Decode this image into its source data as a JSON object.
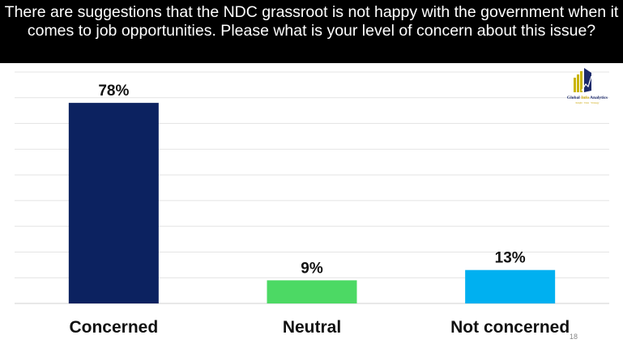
{
  "chart_data": {
    "type": "bar",
    "title": "There are suggestions that the NDC grassroot is not happy with the government when it comes to job opportunities. Please what is your level of concern about this issue?",
    "categories": [
      "Concerned",
      "Neutral",
      "Not concerned"
    ],
    "values": [
      78,
      9,
      13
    ],
    "data_labels": [
      "78%",
      "9%",
      "13%"
    ],
    "colors": [
      "#0c2260",
      "#4cd964",
      "#00b0f0"
    ],
    "ylim": [
      0,
      90
    ],
    "grid": true,
    "yticks_shown": false
  },
  "logo": {
    "text": "Global Info Analytics",
    "tagline": "Insight · Data · Strategy"
  },
  "page_number": "18"
}
